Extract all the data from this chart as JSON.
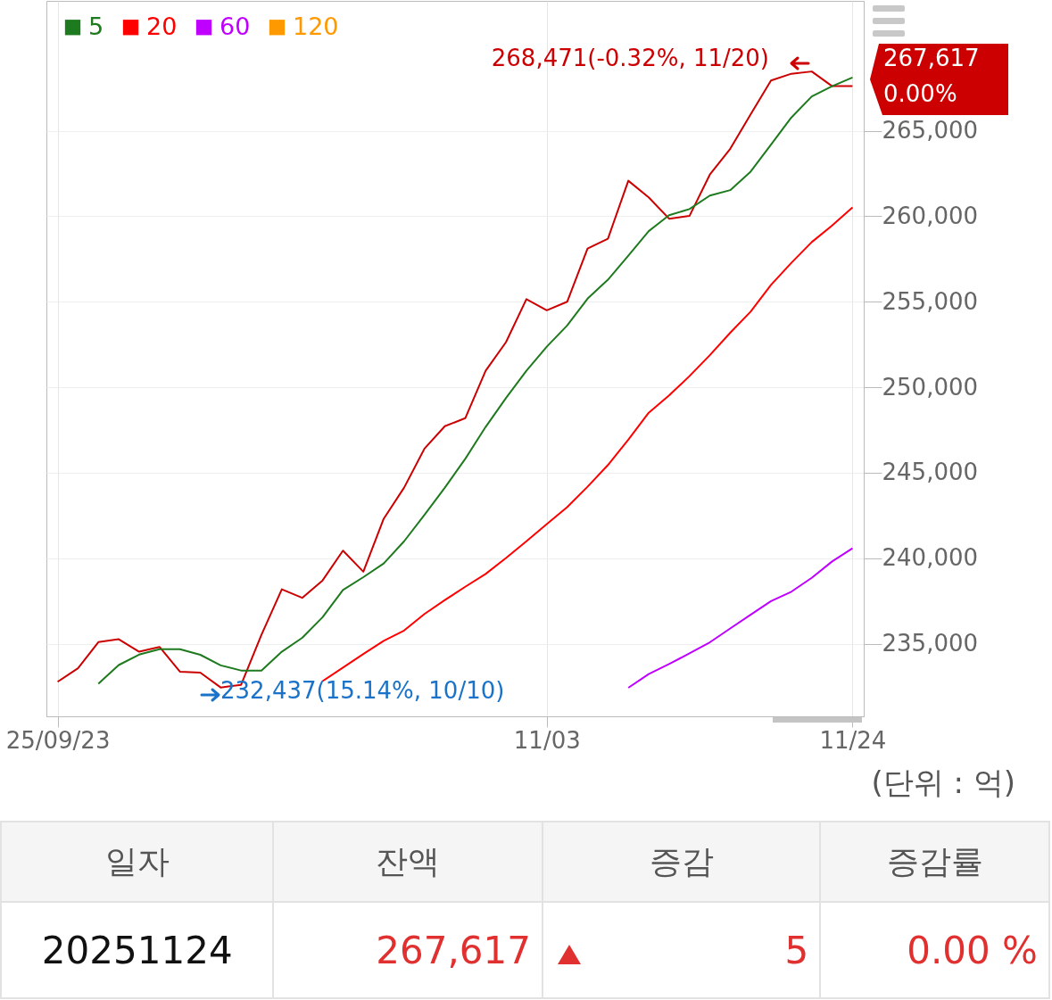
{
  "chart_data": {
    "type": "line",
    "categories": [
      "25/09/23",
      null,
      null,
      null,
      null,
      null,
      null,
      null,
      null,
      null,
      null,
      null,
      null,
      null,
      null,
      null,
      null,
      null,
      null,
      null,
      null,
      null,
      null,
      null,
      "11/03",
      null,
      null,
      null,
      null,
      null,
      null,
      null,
      null,
      null,
      null,
      null,
      null,
      null,
      null,
      "11/24"
    ],
    "series": [
      {
        "color": "#cc0000",
        "values": [
          232770,
          233560,
          235090,
          235260,
          234530,
          234810,
          233360,
          233310,
          232437,
          232590,
          235520,
          238180,
          237680,
          238700,
          240440,
          239210,
          242310,
          244130,
          246410,
          247720,
          248190,
          250960,
          252640,
          255150,
          254500,
          255000,
          258110,
          258690,
          262080,
          261110,
          259860,
          260020,
          262440,
          263950,
          265960,
          267940,
          268340,
          268471,
          267612,
          267617
        ]
      },
      {
        "name": "5",
        "color": "#1e7a1e",
        "values": [
          null,
          null,
          232660,
          233750,
          234360,
          234680,
          234680,
          234350,
          233730,
          233430,
          233430,
          234530,
          235340,
          236550,
          238140,
          238890,
          239690,
          240990,
          242540,
          244130,
          245810,
          247680,
          249370,
          250960,
          252370,
          253610,
          255180,
          256290,
          257700,
          259130,
          260060,
          260420,
          261210,
          261530,
          262610,
          264190,
          265780,
          267010,
          267610,
          268120
        ]
      },
      {
        "name": "20",
        "color": "#ff0000",
        "values": [
          null,
          null,
          null,
          null,
          null,
          null,
          null,
          null,
          null,
          null,
          null,
          null,
          null,
          232810,
          233600,
          234400,
          235170,
          235770,
          236740,
          237550,
          238330,
          239080,
          240010,
          240990,
          241990,
          242990,
          244180,
          245450,
          246930,
          248510,
          249520,
          250650,
          251880,
          253190,
          254420,
          255990,
          257280,
          258490,
          259460,
          260520
        ]
      },
      {
        "name": "60",
        "color": "#bf00ff",
        "values": [
          null,
          null,
          null,
          null,
          null,
          null,
          null,
          null,
          null,
          null,
          null,
          null,
          null,
          null,
          null,
          null,
          null,
          null,
          null,
          null,
          null,
          null,
          null,
          null,
          null,
          null,
          null,
          null,
          232420,
          233220,
          233810,
          234430,
          235080,
          235890,
          236690,
          237490,
          238040,
          238850,
          239810,
          240580
        ]
      },
      {
        "name": "120",
        "color": "#ff9900",
        "values": [
          null,
          null,
          null,
          null,
          null,
          null,
          null,
          null,
          null,
          null,
          null,
          null,
          null,
          null,
          null,
          null,
          null,
          null,
          null,
          null,
          null,
          null,
          null,
          null,
          null,
          null,
          null,
          null,
          null,
          null,
          null,
          null,
          null,
          null,
          null,
          null,
          null,
          null,
          null,
          null
        ]
      }
    ],
    "ylim": [
      230750,
      272600
    ],
    "yticks": [
      {
        "value": 235000,
        "label": "235,000"
      },
      {
        "value": 240000,
        "label": "240,000"
      },
      {
        "value": 245000,
        "label": "245,000"
      },
      {
        "value": 250000,
        "label": "250,000"
      },
      {
        "value": 255000,
        "label": "255,000"
      },
      {
        "value": 260000,
        "label": "260,000"
      },
      {
        "value": 265000,
        "label": "265,000"
      }
    ],
    "grid": true,
    "legend": "top left",
    "annotations": [
      "268,471(-0.32%, 11/20)",
      "232,437(15.14%, 10/10)",
      "267,617",
      "0.00%",
      "(단위 : 억)",
      "일자",
      "잔액",
      "증감",
      "증감률",
      "20251124",
      "267,617",
      "5",
      "0.00 %"
    ]
  }
}
